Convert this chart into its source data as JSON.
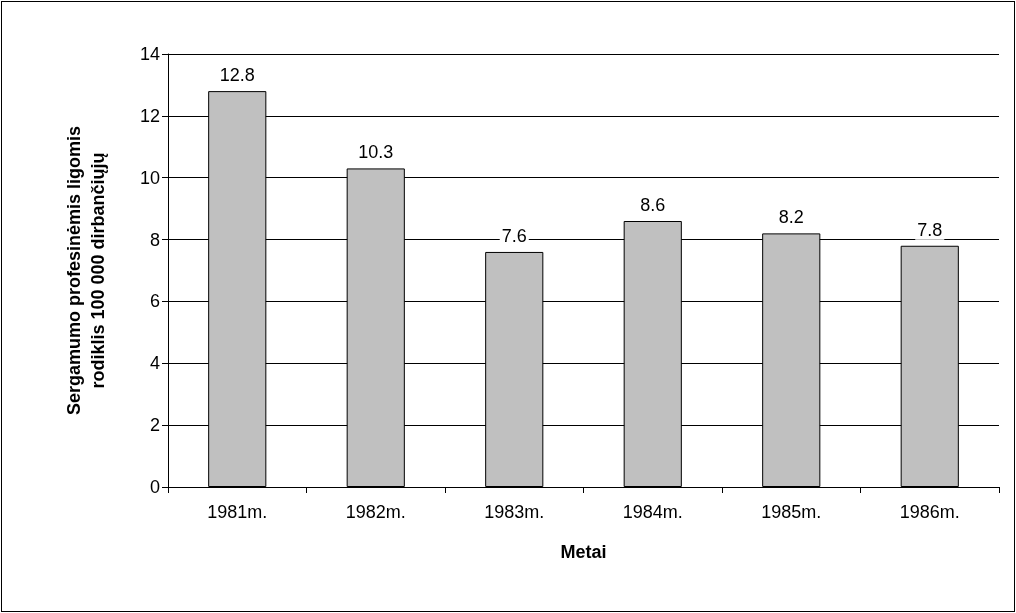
{
  "chart_data": {
    "type": "bar",
    "xlabel": "Metai",
    "ylabel": "Sergamumo profesinėmis ligomis\nrodiklis 100 000 dirbančiųjų",
    "categories": [
      "1981m.",
      "1982m.",
      "1983m.",
      "1984m.",
      "1985m.",
      "1986m."
    ],
    "values": [
      12.8,
      10.3,
      7.6,
      8.6,
      8.2,
      7.8
    ],
    "color": "#c0c0c0",
    "ylim": [
      0,
      14
    ],
    "yticks": [
      0,
      2,
      4,
      6,
      8,
      10,
      12,
      14
    ],
    "grid": "y",
    "data_labels": true
  }
}
